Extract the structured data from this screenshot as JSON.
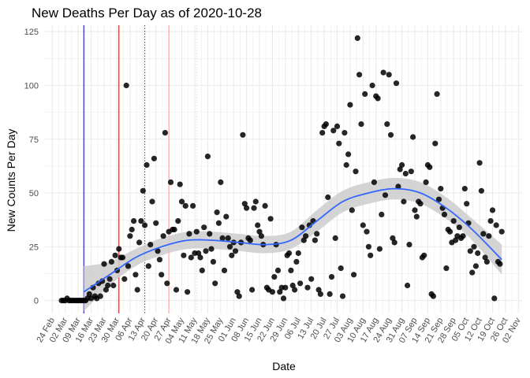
{
  "chart_data": {
    "type": "scatter",
    "title": "New Deaths Per Day as of 2020-10-28",
    "xlabel": "Date",
    "ylabel": "New Counts Per Day",
    "xlim": [
      "2020-02-20",
      "2020-11-04"
    ],
    "ylim": [
      -6,
      128
    ],
    "grid": true,
    "y_ticks": [
      0,
      25,
      50,
      75,
      100,
      125
    ],
    "x_ticks": [
      {
        "date": "2020-02-24",
        "label": "24 Feb"
      },
      {
        "date": "2020-03-02",
        "label": "02 Mar"
      },
      {
        "date": "2020-03-09",
        "label": "09 Mar"
      },
      {
        "date": "2020-03-16",
        "label": "16 Mar"
      },
      {
        "date": "2020-03-23",
        "label": "23 Mar"
      },
      {
        "date": "2020-03-30",
        "label": "30 Mar"
      },
      {
        "date": "2020-04-06",
        "label": "06 Apr"
      },
      {
        "date": "2020-04-13",
        "label": "13 Apr"
      },
      {
        "date": "2020-04-20",
        "label": "20 Apr"
      },
      {
        "date": "2020-04-27",
        "label": "27 Apr"
      },
      {
        "date": "2020-05-04",
        "label": "04 May"
      },
      {
        "date": "2020-05-11",
        "label": "11 May"
      },
      {
        "date": "2020-05-18",
        "label": "18 May"
      },
      {
        "date": "2020-05-25",
        "label": "25 May"
      },
      {
        "date": "2020-06-01",
        "label": "01 Jun"
      },
      {
        "date": "2020-06-08",
        "label": "08 Jun"
      },
      {
        "date": "2020-06-15",
        "label": "15 Jun"
      },
      {
        "date": "2020-06-22",
        "label": "22 Jun"
      },
      {
        "date": "2020-06-29",
        "label": "29 Jun"
      },
      {
        "date": "2020-07-06",
        "label": "06 Jul"
      },
      {
        "date": "2020-07-13",
        "label": "13 Jul"
      },
      {
        "date": "2020-07-20",
        "label": "20 Jul"
      },
      {
        "date": "2020-07-27",
        "label": "27 Jul"
      },
      {
        "date": "2020-08-03",
        "label": "03 Aug"
      },
      {
        "date": "2020-08-10",
        "label": "10 Aug"
      },
      {
        "date": "2020-08-17",
        "label": "17 Aug"
      },
      {
        "date": "2020-08-24",
        "label": "24 Aug"
      },
      {
        "date": "2020-08-31",
        "label": "31 Aug"
      },
      {
        "date": "2020-09-07",
        "label": "07 Sep"
      },
      {
        "date": "2020-09-14",
        "label": "14 Sep"
      },
      {
        "date": "2020-09-21",
        "label": "21 Sep"
      },
      {
        "date": "2020-09-28",
        "label": "28 Sep"
      },
      {
        "date": "2020-10-05",
        "label": "05 Oct"
      },
      {
        "date": "2020-10-12",
        "label": "12 Oct"
      },
      {
        "date": "2020-10-19",
        "label": "19 Oct"
      },
      {
        "date": "2020-10-26",
        "label": "26 Oct"
      },
      {
        "date": "2020-11-02",
        "label": "02 Nov"
      }
    ],
    "vlines": [
      {
        "date": "2020-03-12",
        "color": "#0000cc",
        "style": "solid"
      },
      {
        "date": "2020-03-31",
        "color": "#cc0000",
        "style": "solid"
      },
      {
        "date": "2020-04-14",
        "color": "#cc0000",
        "style": "dotted"
      },
      {
        "date": "2020-04-27",
        "color": "#ff9999",
        "style": "solid"
      },
      {
        "date": "2020-05-12",
        "color": "#dddddd",
        "style": "dotted"
      }
    ],
    "colors": {
      "points": "#000000",
      "smooth": "#3366ff",
      "band": "#cccccc",
      "grid": "#ebebeb"
    },
    "points": [
      [
        "2020-02-29",
        0
      ],
      [
        "2020-03-01",
        0
      ],
      [
        "2020-03-02",
        0
      ],
      [
        "2020-03-03",
        1
      ],
      [
        "2020-03-04",
        0
      ],
      [
        "2020-03-05",
        0
      ],
      [
        "2020-03-06",
        0
      ],
      [
        "2020-03-07",
        0
      ],
      [
        "2020-03-08",
        0
      ],
      [
        "2020-03-09",
        0
      ],
      [
        "2020-03-10",
        0
      ],
      [
        "2020-03-11",
        0
      ],
      [
        "2020-03-12",
        0
      ],
      [
        "2020-03-13",
        0
      ],
      [
        "2020-03-14",
        1
      ],
      [
        "2020-03-15",
        3
      ],
      [
        "2020-03-16",
        1
      ],
      [
        "2020-03-17",
        6
      ],
      [
        "2020-03-18",
        2
      ],
      [
        "2020-03-19",
        1
      ],
      [
        "2020-03-20",
        8
      ],
      [
        "2020-03-21",
        2
      ],
      [
        "2020-03-22",
        9
      ],
      [
        "2020-03-23",
        17
      ],
      [
        "2020-03-24",
        5
      ],
      [
        "2020-03-25",
        7
      ],
      [
        "2020-03-26",
        10
      ],
      [
        "2020-03-27",
        18
      ],
      [
        "2020-03-28",
        7
      ],
      [
        "2020-03-29",
        21
      ],
      [
        "2020-03-30",
        14
      ],
      [
        "2020-03-31",
        24
      ],
      [
        "2020-04-01",
        20
      ],
      [
        "2020-04-02",
        20
      ],
      [
        "2020-04-03",
        10
      ],
      [
        "2020-04-04",
        100
      ],
      [
        "2020-04-05",
        16
      ],
      [
        "2020-04-06",
        30
      ],
      [
        "2020-04-07",
        33
      ],
      [
        "2020-04-08",
        37
      ],
      [
        "2020-04-09",
        12
      ],
      [
        "2020-04-10",
        5
      ],
      [
        "2020-04-11",
        27
      ],
      [
        "2020-04-12",
        37
      ],
      [
        "2020-04-13",
        51
      ],
      [
        "2020-04-14",
        35
      ],
      [
        "2020-04-15",
        63
      ],
      [
        "2020-04-16",
        16
      ],
      [
        "2020-04-17",
        26
      ],
      [
        "2020-04-18",
        46
      ],
      [
        "2020-04-19",
        66
      ],
      [
        "2020-04-20",
        36
      ],
      [
        "2020-04-21",
        23
      ],
      [
        "2020-04-22",
        19
      ],
      [
        "2020-04-23",
        12
      ],
      [
        "2020-04-24",
        30
      ],
      [
        "2020-04-25",
        78
      ],
      [
        "2020-04-26",
        8
      ],
      [
        "2020-04-27",
        32
      ],
      [
        "2020-04-28",
        55
      ],
      [
        "2020-04-29",
        33
      ],
      [
        "2020-04-30",
        33
      ],
      [
        "2020-05-01",
        5
      ],
      [
        "2020-05-02",
        37
      ],
      [
        "2020-05-03",
        54
      ],
      [
        "2020-05-04",
        46
      ],
      [
        "2020-05-05",
        21
      ],
      [
        "2020-05-06",
        44
      ],
      [
        "2020-05-07",
        4
      ],
      [
        "2020-05-08",
        31
      ],
      [
        "2020-05-09",
        20
      ],
      [
        "2020-05-10",
        44
      ],
      [
        "2020-05-11",
        22
      ],
      [
        "2020-05-12",
        32
      ],
      [
        "2020-05-13",
        22
      ],
      [
        "2020-05-14",
        20
      ],
      [
        "2020-05-15",
        14
      ],
      [
        "2020-05-16",
        34
      ],
      [
        "2020-05-17",
        23
      ],
      [
        "2020-05-18",
        67
      ],
      [
        "2020-05-19",
        31
      ],
      [
        "2020-05-20",
        24
      ],
      [
        "2020-05-21",
        18
      ],
      [
        "2020-05-22",
        8
      ],
      [
        "2020-05-23",
        41
      ],
      [
        "2020-05-24",
        36
      ],
      [
        "2020-05-25",
        55
      ],
      [
        "2020-05-26",
        29
      ],
      [
        "2020-05-27",
        14
      ],
      [
        "2020-05-28",
        39
      ],
      [
        "2020-05-29",
        29
      ],
      [
        "2020-05-30",
        25
      ],
      [
        "2020-05-31",
        21
      ],
      [
        "2020-06-01",
        27
      ],
      [
        "2020-06-02",
        23
      ],
      [
        "2020-06-03",
        4
      ],
      [
        "2020-06-04",
        2
      ],
      [
        "2020-06-05",
        27
      ],
      [
        "2020-06-06",
        77
      ],
      [
        "2020-06-07",
        45
      ],
      [
        "2020-06-08",
        43
      ],
      [
        "2020-06-09",
        29
      ],
      [
        "2020-06-10",
        28
      ],
      [
        "2020-06-11",
        5
      ],
      [
        "2020-06-12",
        43
      ],
      [
        "2020-06-13",
        46
      ],
      [
        "2020-06-14",
        35
      ],
      [
        "2020-06-15",
        32
      ],
      [
        "2020-06-16",
        30
      ],
      [
        "2020-06-17",
        26
      ],
      [
        "2020-06-18",
        44
      ],
      [
        "2020-06-19",
        6
      ],
      [
        "2020-06-20",
        5
      ],
      [
        "2020-06-21",
        38
      ],
      [
        "2020-06-22",
        4
      ],
      [
        "2020-06-23",
        11
      ],
      [
        "2020-06-24",
        26
      ],
      [
        "2020-06-25",
        14
      ],
      [
        "2020-06-26",
        4
      ],
      [
        "2020-06-27",
        6
      ],
      [
        "2020-06-28",
        1
      ],
      [
        "2020-06-29",
        6
      ],
      [
        "2020-06-30",
        21
      ],
      [
        "2020-07-01",
        22
      ],
      [
        "2020-07-02",
        14
      ],
      [
        "2020-07-03",
        7
      ],
      [
        "2020-07-04",
        5
      ],
      [
        "2020-07-05",
        18
      ],
      [
        "2020-07-06",
        22
      ],
      [
        "2020-07-07",
        8
      ],
      [
        "2020-07-08",
        34
      ],
      [
        "2020-07-09",
        28
      ],
      [
        "2020-07-10",
        30
      ],
      [
        "2020-07-11",
        6
      ],
      [
        "2020-07-12",
        35
      ],
      [
        "2020-07-13",
        10
      ],
      [
        "2020-07-14",
        37
      ],
      [
        "2020-07-15",
        28
      ],
      [
        "2020-07-16",
        31
      ],
      [
        "2020-07-17",
        5
      ],
      [
        "2020-07-18",
        3
      ],
      [
        "2020-07-19",
        78
      ],
      [
        "2020-07-20",
        81
      ],
      [
        "2020-07-21",
        82
      ],
      [
        "2020-07-22",
        48
      ],
      [
        "2020-07-23",
        3
      ],
      [
        "2020-07-24",
        11
      ],
      [
        "2020-07-25",
        79
      ],
      [
        "2020-07-26",
        29
      ],
      [
        "2020-07-27",
        81
      ],
      [
        "2020-07-28",
        73
      ],
      [
        "2020-07-29",
        15
      ],
      [
        "2020-07-30",
        2
      ],
      [
        "2020-07-31",
        78
      ],
      [
        "2020-08-01",
        63
      ],
      [
        "2020-08-02",
        68
      ],
      [
        "2020-08-03",
        91
      ],
      [
        "2020-08-04",
        42
      ],
      [
        "2020-08-05",
        12
      ],
      [
        "2020-08-06",
        60
      ],
      [
        "2020-08-07",
        122
      ],
      [
        "2020-08-08",
        105
      ],
      [
        "2020-08-09",
        82
      ],
      [
        "2020-08-10",
        35
      ],
      [
        "2020-08-11",
        96
      ],
      [
        "2020-08-12",
        32
      ],
      [
        "2020-08-13",
        25
      ],
      [
        "2020-08-14",
        21
      ],
      [
        "2020-08-15",
        100
      ],
      [
        "2020-08-16",
        55
      ],
      [
        "2020-08-17",
        95
      ],
      [
        "2020-08-18",
        94
      ],
      [
        "2020-08-19",
        24
      ],
      [
        "2020-08-20",
        40
      ],
      [
        "2020-08-21",
        106
      ],
      [
        "2020-08-22",
        49
      ],
      [
        "2020-08-23",
        82
      ],
      [
        "2020-08-24",
        105
      ],
      [
        "2020-08-25",
        77
      ],
      [
        "2020-08-26",
        29
      ],
      [
        "2020-08-27",
        27
      ],
      [
        "2020-08-28",
        101
      ],
      [
        "2020-08-29",
        53
      ],
      [
        "2020-08-30",
        61
      ],
      [
        "2020-08-31",
        63
      ],
      [
        "2020-09-01",
        46
      ],
      [
        "2020-09-02",
        59
      ],
      [
        "2020-09-03",
        7
      ],
      [
        "2020-09-04",
        26
      ],
      [
        "2020-09-05",
        60
      ],
      [
        "2020-09-06",
        76
      ],
      [
        "2020-09-07",
        42
      ],
      [
        "2020-09-08",
        39
      ],
      [
        "2020-09-09",
        46
      ],
      [
        "2020-09-10",
        45
      ],
      [
        "2020-09-11",
        20
      ],
      [
        "2020-09-12",
        21
      ],
      [
        "2020-09-13",
        55
      ],
      [
        "2020-09-14",
        63
      ],
      [
        "2020-09-15",
        62
      ],
      [
        "2020-09-16",
        3
      ],
      [
        "2020-09-17",
        2
      ],
      [
        "2020-09-18",
        73
      ],
      [
        "2020-09-19",
        96
      ],
      [
        "2020-09-20",
        47
      ],
      [
        "2020-09-21",
        52
      ],
      [
        "2020-09-22",
        43
      ],
      [
        "2020-09-23",
        40
      ],
      [
        "2020-09-24",
        15
      ],
      [
        "2020-09-25",
        33
      ],
      [
        "2020-09-26",
        32
      ],
      [
        "2020-09-27",
        27
      ],
      [
        "2020-09-28",
        37
      ],
      [
        "2020-09-29",
        28
      ],
      [
        "2020-09-30",
        30
      ],
      [
        "2020-10-01",
        34
      ],
      [
        "2020-10-02",
        29
      ],
      [
        "2020-10-03",
        30
      ],
      [
        "2020-10-04",
        52
      ],
      [
        "2020-10-05",
        45
      ],
      [
        "2020-10-06",
        36
      ],
      [
        "2020-10-07",
        23
      ],
      [
        "2020-10-08",
        13
      ],
      [
        "2020-10-09",
        25
      ],
      [
        "2020-10-10",
        16
      ],
      [
        "2020-10-11",
        22
      ],
      [
        "2020-10-12",
        64
      ],
      [
        "2020-10-13",
        51
      ],
      [
        "2020-10-14",
        31
      ],
      [
        "2020-10-15",
        20
      ],
      [
        "2020-10-16",
        18
      ],
      [
        "2020-10-17",
        30
      ],
      [
        "2020-10-18",
        37
      ],
      [
        "2020-10-19",
        42
      ],
      [
        "2020-10-20",
        1
      ],
      [
        "2020-10-21",
        35
      ],
      [
        "2020-10-22",
        18
      ],
      [
        "2020-10-23",
        17
      ],
      [
        "2020-10-24",
        32
      ]
    ],
    "smooth_curve": [
      {
        "x": "2020-03-12",
        "y": 4,
        "lo": -5,
        "hi": 16
      },
      {
        "x": "2020-03-26",
        "y": 12,
        "lo": 7,
        "hi": 18
      },
      {
        "x": "2020-04-09",
        "y": 20,
        "lo": 16,
        "hi": 24
      },
      {
        "x": "2020-04-23",
        "y": 25,
        "lo": 21,
        "hi": 29
      },
      {
        "x": "2020-05-07",
        "y": 28,
        "lo": 24,
        "hi": 32
      },
      {
        "x": "2020-05-21",
        "y": 28,
        "lo": 24,
        "hi": 32
      },
      {
        "x": "2020-06-04",
        "y": 27,
        "lo": 23,
        "hi": 31
      },
      {
        "x": "2020-06-18",
        "y": 26,
        "lo": 22,
        "hi": 30
      },
      {
        "x": "2020-07-02",
        "y": 28,
        "lo": 24,
        "hi": 32
      },
      {
        "x": "2020-07-16",
        "y": 37,
        "lo": 32,
        "hi": 42
      },
      {
        "x": "2020-07-30",
        "y": 46,
        "lo": 41,
        "hi": 51
      },
      {
        "x": "2020-08-13",
        "y": 50,
        "lo": 45,
        "hi": 55
      },
      {
        "x": "2020-08-27",
        "y": 52,
        "lo": 47,
        "hi": 57
      },
      {
        "x": "2020-09-10",
        "y": 50,
        "lo": 45,
        "hi": 55
      },
      {
        "x": "2020-09-24",
        "y": 43,
        "lo": 38,
        "hi": 48
      },
      {
        "x": "2020-10-08",
        "y": 33,
        "lo": 28,
        "hi": 38
      },
      {
        "x": "2020-10-24",
        "y": 19,
        "lo": 12,
        "hi": 26
      }
    ]
  }
}
